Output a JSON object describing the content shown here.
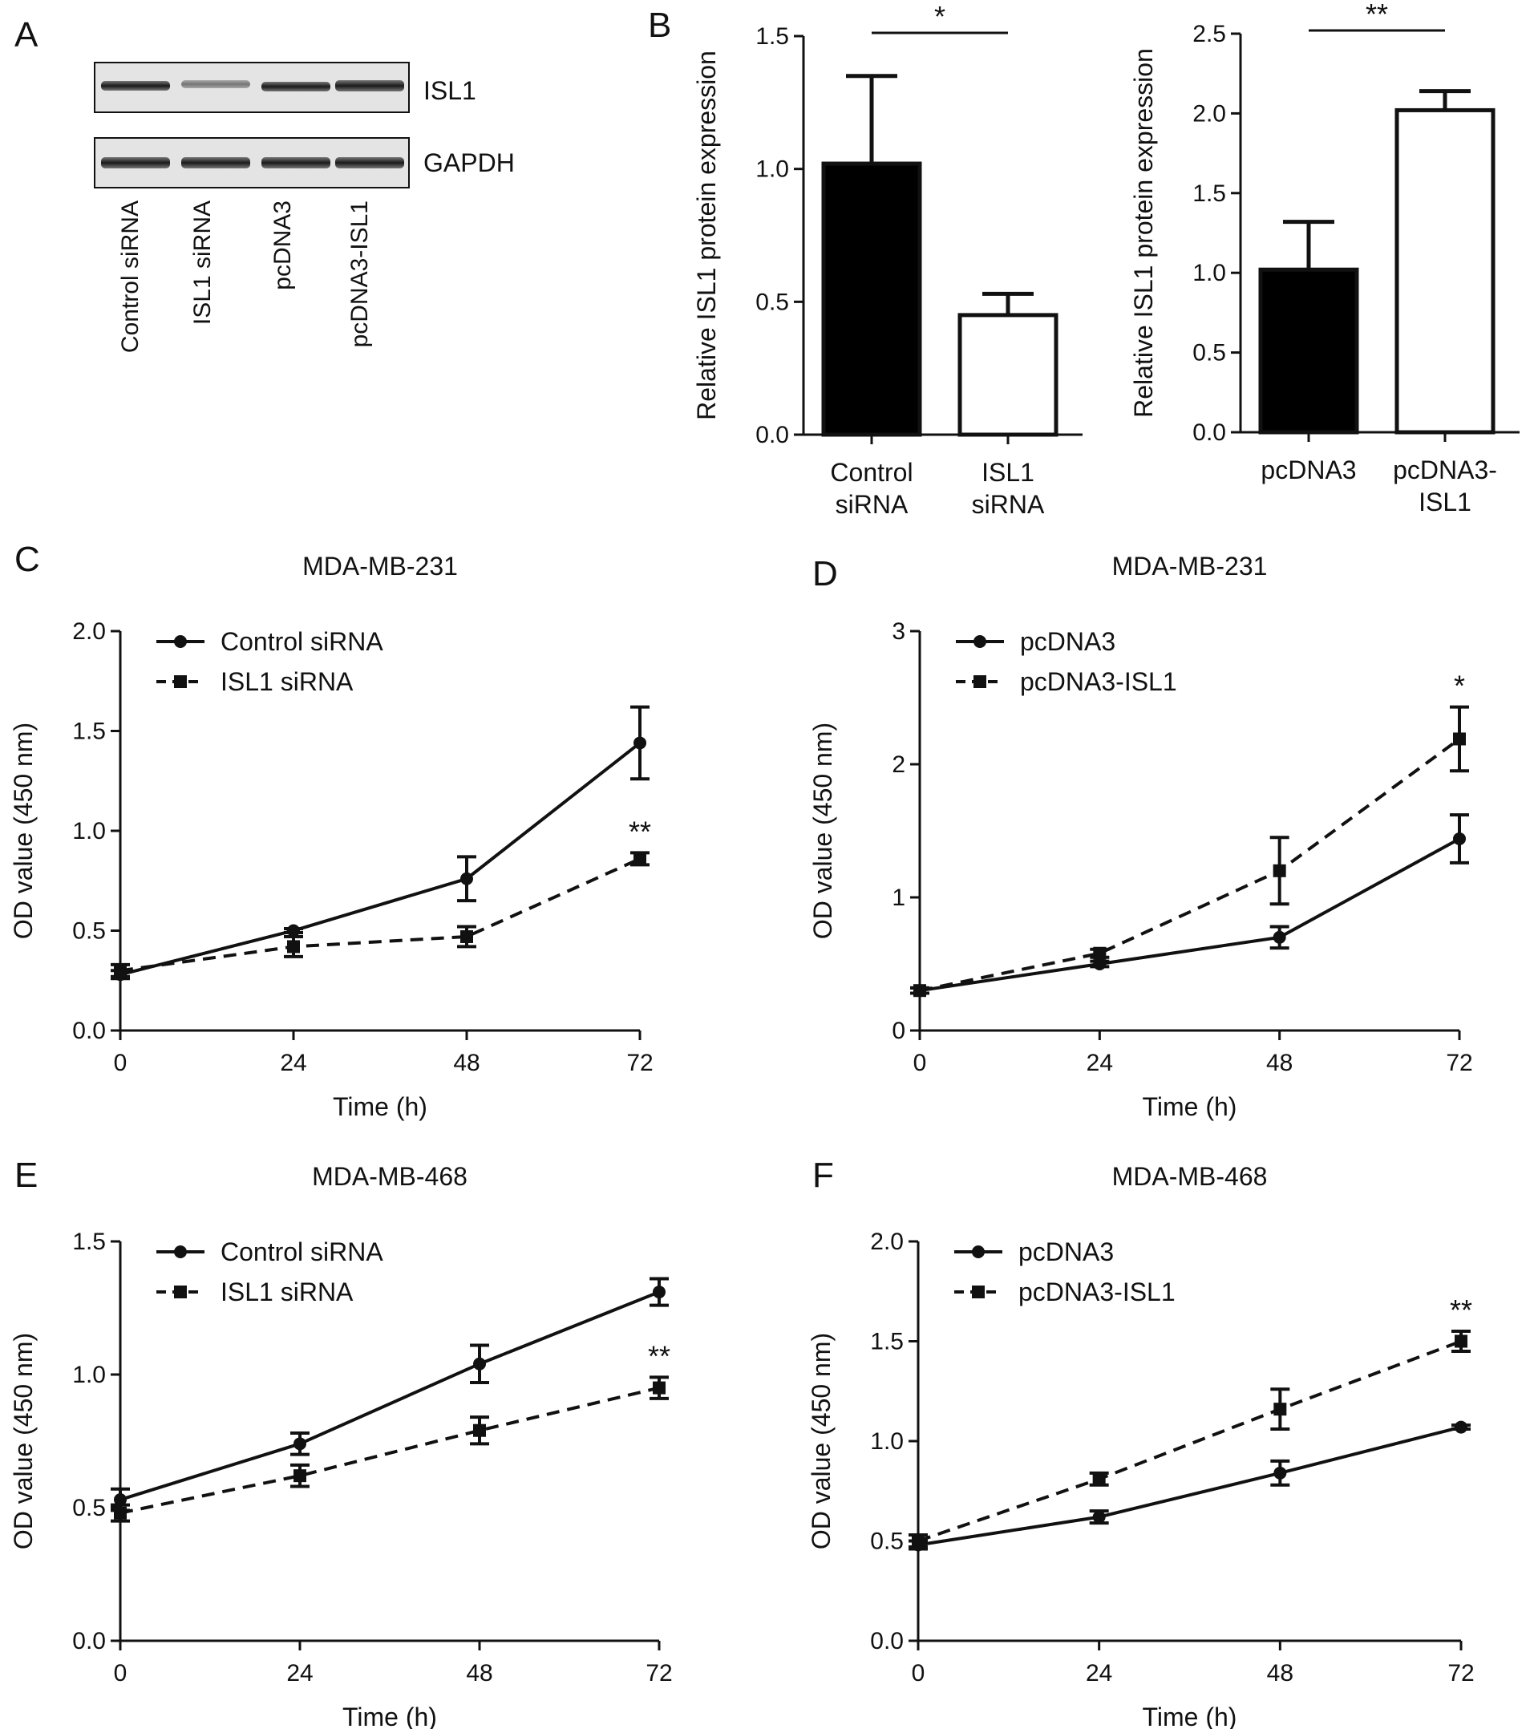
{
  "panel_labels": [
    "A",
    "B",
    "C",
    "D",
    "E",
    "F"
  ],
  "panel_A": {
    "bands": [
      "ISL1",
      "GAPDH"
    ],
    "lanes": [
      "Control siRNA",
      "ISL1 siRNA",
      "pcDNA3",
      "pcDNA3-ISL1"
    ]
  },
  "chart_data": [
    {
      "id": "B1",
      "type": "bar",
      "title": "",
      "categories": [
        [
          "Control",
          "siRNA"
        ],
        [
          "ISL1",
          "siRNA"
        ]
      ],
      "values": [
        1.02,
        0.45
      ],
      "errors": [
        0.33,
        0.08
      ],
      "colors": [
        "#000000",
        "#ffffff"
      ],
      "xlabel": "",
      "ylabel": "Relative ISL1 protein expression",
      "ylim": [
        0,
        1.5
      ],
      "yticks": [
        "0.0",
        "0.5",
        "1.0",
        "1.5"
      ],
      "significance": "*",
      "grid": false
    },
    {
      "id": "B2",
      "type": "bar",
      "title": "",
      "categories": [
        [
          "pcDNA3"
        ],
        [
          "pcDNA3-",
          "ISL1"
        ]
      ],
      "values": [
        1.02,
        2.02
      ],
      "errors": [
        0.3,
        0.12
      ],
      "colors": [
        "#000000",
        "#ffffff"
      ],
      "xlabel": "",
      "ylabel": "Relative ISL1 protein expression",
      "ylim": [
        0,
        2.5
      ],
      "yticks": [
        "0.0",
        "0.5",
        "1.0",
        "1.5",
        "2.0",
        "2.5"
      ],
      "significance": "**",
      "grid": false
    },
    {
      "id": "C",
      "type": "line",
      "title": "MDA-MB-231",
      "x": [
        0,
        24,
        48,
        72
      ],
      "xticks": [
        "0",
        "24",
        "48",
        "72"
      ],
      "xlabel": "Time (h)",
      "ylabel": "OD value (450 nm)",
      "xlim": [
        0,
        72
      ],
      "ylim": [
        0,
        2.0
      ],
      "yticks": [
        "0.0",
        "0.5",
        "1.0",
        "1.5",
        "2.0"
      ],
      "series": [
        {
          "name": "Control siRNA",
          "values": [
            0.28,
            0.5,
            0.76,
            1.44
          ],
          "errors": [
            0.02,
            0.01,
            0.11,
            0.18
          ],
          "dashed": false,
          "marker": "circle"
        },
        {
          "name": "ISL1 siRNA",
          "values": [
            0.3,
            0.42,
            0.47,
            0.86
          ],
          "errors": [
            0.03,
            0.05,
            0.05,
            0.03
          ],
          "dashed": true,
          "marker": "square"
        }
      ],
      "annotation": {
        "text": "**",
        "x": 72,
        "y": 0.86
      },
      "legend": "top-left",
      "grid": false
    },
    {
      "id": "D",
      "type": "line",
      "title": "MDA-MB-231",
      "x": [
        0,
        24,
        48,
        72
      ],
      "xticks": [
        "0",
        "24",
        "48",
        "72"
      ],
      "xlabel": "Time (h)",
      "ylabel": "OD value (450 nm)",
      "xlim": [
        0,
        72
      ],
      "ylim": [
        0,
        3
      ],
      "yticks": [
        "0",
        "1",
        "2",
        "3"
      ],
      "series": [
        {
          "name": "pcDNA3",
          "values": [
            0.3,
            0.5,
            0.7,
            1.44
          ],
          "errors": [
            0.02,
            0.02,
            0.08,
            0.18
          ],
          "dashed": false,
          "marker": "circle"
        },
        {
          "name": "pcDNA3-ISL1",
          "values": [
            0.3,
            0.58,
            1.2,
            2.19
          ],
          "errors": [
            0.02,
            0.03,
            0.25,
            0.24
          ],
          "dashed": true,
          "marker": "square"
        }
      ],
      "annotation": {
        "text": "*",
        "x": 72,
        "y": 2.19
      },
      "legend": "top-left",
      "grid": false
    },
    {
      "id": "E",
      "type": "line",
      "title": "MDA-MB-468",
      "x": [
        0,
        24,
        48,
        72
      ],
      "xticks": [
        "0",
        "24",
        "48",
        "72"
      ],
      "xlabel": "Time (h)",
      "ylabel": "OD value (450 nm)",
      "xlim": [
        0,
        72
      ],
      "ylim": [
        0,
        1.5
      ],
      "yticks": [
        "0.0",
        "0.5",
        "1.0",
        "1.5"
      ],
      "series": [
        {
          "name": "Control siRNA",
          "values": [
            0.53,
            0.74,
            1.04,
            1.31
          ],
          "errors": [
            0.04,
            0.04,
            0.07,
            0.05
          ],
          "dashed": false,
          "marker": "circle"
        },
        {
          "name": "ISL1 siRNA",
          "values": [
            0.48,
            0.62,
            0.79,
            0.95
          ],
          "errors": [
            0.03,
            0.04,
            0.05,
            0.04
          ],
          "dashed": true,
          "marker": "square"
        }
      ],
      "annotation": {
        "text": "**",
        "x": 72,
        "y": 0.95
      },
      "legend": "top-left",
      "grid": false
    },
    {
      "id": "F",
      "type": "line",
      "title": "MDA-MB-468",
      "x": [
        0,
        24,
        48,
        72
      ],
      "xticks": [
        "0",
        "24",
        "48",
        "72"
      ],
      "xlabel": "Time (h)",
      "ylabel": "OD value (450 nm)",
      "xlim": [
        0,
        72
      ],
      "ylim": [
        0,
        2.0
      ],
      "yticks": [
        "0.0",
        "0.5",
        "1.0",
        "1.5",
        "2.0"
      ],
      "series": [
        {
          "name": "pcDNA3",
          "values": [
            0.48,
            0.62,
            0.84,
            1.07
          ],
          "errors": [
            0.02,
            0.03,
            0.06,
            0.01
          ],
          "dashed": false,
          "marker": "circle"
        },
        {
          "name": "pcDNA3-ISL1",
          "values": [
            0.5,
            0.81,
            1.16,
            1.5
          ],
          "errors": [
            0.03,
            0.03,
            0.1,
            0.05
          ],
          "dashed": true,
          "marker": "square"
        }
      ],
      "annotation": {
        "text": "**",
        "x": 72,
        "y": 1.5
      },
      "legend": "top-left",
      "grid": false
    }
  ]
}
